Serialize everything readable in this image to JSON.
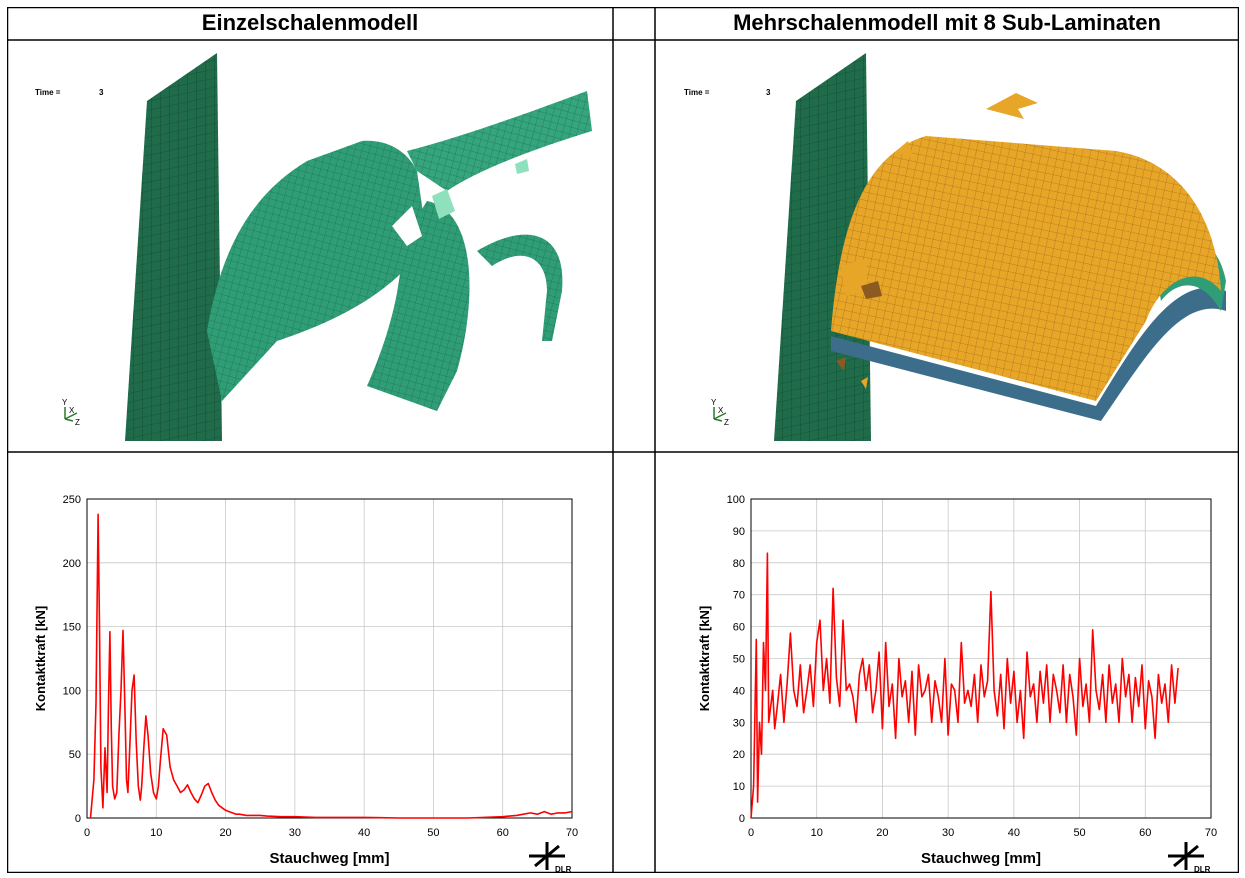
{
  "headers": {
    "left": "Einzelschalenmodell",
    "right": "Mehrschalenmodell mit 8 Sub-Laminaten"
  },
  "sim": {
    "time_label": "Time =",
    "time_value": "3",
    "axis_y": "Y",
    "axis_x": "X",
    "axis_z": "Z",
    "colors": {
      "plate": "#1f6b4a",
      "shell": "#2f9e76",
      "laminate": "#e8a628"
    }
  },
  "logo_text": "DLR",
  "chart_data": [
    {
      "type": "line",
      "title": "",
      "xlabel": "Stauchweg   [mm]",
      "ylabel": "Kontaktkraft   [kN]",
      "xlim": [
        0,
        70
      ],
      "ylim": [
        0,
        250
      ],
      "xticks": [
        0,
        10,
        20,
        30,
        40,
        50,
        60,
        70
      ],
      "yticks": [
        0,
        50,
        100,
        150,
        200,
        250
      ],
      "grid": true,
      "series": [
        {
          "color": "#ff0000",
          "x": [
            0.5,
            1.0,
            1.3,
            1.6,
            1.8,
            2.0,
            2.3,
            2.6,
            2.9,
            3.1,
            3.3,
            3.5,
            3.7,
            4.0,
            4.3,
            4.6,
            4.9,
            5.2,
            5.5,
            5.7,
            5.9,
            6.2,
            6.5,
            6.8,
            7.1,
            7.4,
            7.7,
            7.9,
            8.2,
            8.5,
            8.8,
            9.2,
            9.6,
            10.0,
            10.3,
            10.6,
            11.0,
            11.5,
            12.0,
            12.5,
            13.0,
            13.5,
            14.0,
            14.5,
            15.0,
            15.5,
            16.0,
            16.5,
            17.0,
            17.5,
            18.0,
            18.5,
            19.0,
            19.5,
            20.0,
            20.5,
            21.0,
            21.5,
            22.0,
            23.0,
            24.0,
            25.0,
            26.0,
            28.0,
            30.0,
            33.0,
            36.0,
            40.0,
            45.0,
            50.0,
            55.0,
            60.0,
            62.0,
            63.0,
            64.0,
            65.0,
            66.0,
            67.0,
            68.0,
            69.0,
            70.0
          ],
          "y": [
            0,
            30,
            90,
            238,
            150,
            40,
            8,
            55,
            20,
            90,
            146,
            70,
            25,
            15,
            20,
            65,
            100,
            147,
            80,
            30,
            20,
            60,
            100,
            112,
            60,
            25,
            14,
            25,
            55,
            80,
            65,
            35,
            20,
            15,
            25,
            45,
            70,
            65,
            40,
            30,
            25,
            20,
            22,
            26,
            20,
            15,
            12,
            18,
            25,
            27,
            20,
            14,
            10,
            8,
            6,
            5,
            4,
            3,
            3,
            2,
            2,
            2,
            1.5,
            1,
            1,
            0.5,
            0.5,
            0.5,
            0,
            0,
            0,
            1,
            2,
            3,
            4,
            3,
            5,
            3,
            4,
            4,
            5
          ]
        }
      ]
    },
    {
      "type": "line",
      "title": "",
      "xlabel": "Stauchweg   [mm]",
      "ylabel": "Kontaktkraft   [kN]",
      "xlim": [
        0,
        70
      ],
      "ylim": [
        0,
        100
      ],
      "xticks": [
        0,
        10,
        20,
        30,
        40,
        50,
        60,
        70
      ],
      "yticks": [
        0,
        10,
        20,
        30,
        40,
        50,
        60,
        70,
        80,
        90,
        100
      ],
      "grid": true,
      "series": [
        {
          "color": "#ff0000",
          "x": [
            0,
            0.4,
            0.8,
            1.0,
            1.3,
            1.6,
            1.9,
            2.2,
            2.5,
            2.7,
            3.0,
            3.3,
            3.6,
            4.0,
            4.5,
            5.0,
            5.5,
            6.0,
            6.5,
            7.0,
            7.5,
            8.0,
            8.5,
            9.0,
            9.5,
            10.0,
            10.5,
            11.0,
            11.5,
            12.0,
            12.5,
            13.0,
            13.5,
            14.0,
            14.5,
            15.0,
            15.5,
            16.0,
            16.5,
            17.0,
            17.5,
            18.0,
            18.5,
            19.0,
            19.5,
            20.0,
            20.5,
            21.0,
            21.5,
            22.0,
            22.5,
            23.0,
            23.5,
            24.0,
            24.5,
            25.0,
            25.5,
            26.0,
            26.5,
            27.0,
            27.5,
            28.0,
            28.5,
            29.0,
            29.5,
            30.0,
            30.5,
            31.0,
            31.5,
            32.0,
            32.5,
            33.0,
            33.5,
            34.0,
            34.5,
            35.0,
            35.5,
            36.0,
            36.5,
            37.0,
            37.5,
            38.0,
            38.5,
            39.0,
            39.5,
            40.0,
            40.5,
            41.0,
            41.5,
            42.0,
            42.5,
            43.0,
            43.5,
            44.0,
            44.5,
            45.0,
            45.5,
            46.0,
            46.5,
            47.0,
            47.5,
            48.0,
            48.5,
            49.0,
            49.5,
            50.0,
            50.5,
            51.0,
            51.5,
            52.0,
            52.5,
            53.0,
            53.5,
            54.0,
            54.5,
            55.0,
            55.5,
            56.0,
            56.5,
            57.0,
            57.5,
            58.0,
            58.5,
            59.0,
            59.5,
            60.0,
            60.5,
            61.0,
            61.5,
            62.0,
            62.5,
            63.0,
            63.5,
            64.0,
            64.5,
            65.0
          ],
          "y": [
            0,
            10,
            56,
            5,
            30,
            20,
            55,
            40,
            83,
            30,
            35,
            40,
            28,
            35,
            45,
            30,
            42,
            58,
            40,
            35,
            48,
            33,
            40,
            48,
            35,
            55,
            62,
            40,
            50,
            36,
            72,
            44,
            35,
            62,
            40,
            42,
            38,
            30,
            45,
            50,
            40,
            48,
            33,
            40,
            52,
            28,
            55,
            35,
            42,
            25,
            50,
            38,
            43,
            30,
            46,
            26,
            48,
            38,
            40,
            45,
            30,
            43,
            38,
            30,
            50,
            26,
            42,
            40,
            30,
            55,
            36,
            40,
            35,
            45,
            30,
            48,
            38,
            43,
            71,
            40,
            32,
            45,
            28,
            50,
            36,
            46,
            30,
            40,
            25,
            52,
            38,
            42,
            30,
            46,
            36,
            48,
            30,
            45,
            40,
            33,
            48,
            30,
            45,
            38,
            26,
            50,
            35,
            42,
            30,
            59,
            40,
            34,
            45,
            30,
            48,
            36,
            42,
            30,
            50,
            38,
            45,
            30,
            44,
            35,
            48,
            28,
            43,
            38,
            25,
            45,
            36,
            42,
            30,
            48,
            36,
            47
          ]
        }
      ]
    }
  ]
}
